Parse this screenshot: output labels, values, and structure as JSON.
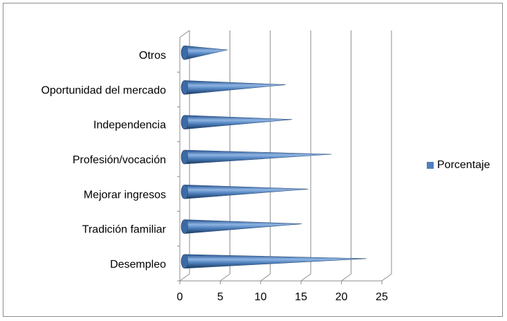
{
  "chart_data": {
    "type": "bar",
    "orientation": "horizontal",
    "style": "3d-cone",
    "categories": [
      "Desempleo",
      "Tradición familiar",
      "Mejorar ingresos",
      "Profesión/vocación",
      "Independencia",
      "Oportunidad del mercado",
      "Otros"
    ],
    "series": [
      {
        "name": "Porcentaje",
        "color": "#4f81bd",
        "values": [
          22.5,
          14.5,
          15.3,
          18.2,
          13.3,
          12.5,
          5.3
        ]
      }
    ],
    "xticks": [
      "0",
      "5",
      "10",
      "15",
      "20",
      "25"
    ],
    "xlim": [
      0,
      25
    ],
    "grid": "vertical",
    "legend_position": "right",
    "title": "",
    "xlabel": "",
    "ylabel": ""
  }
}
